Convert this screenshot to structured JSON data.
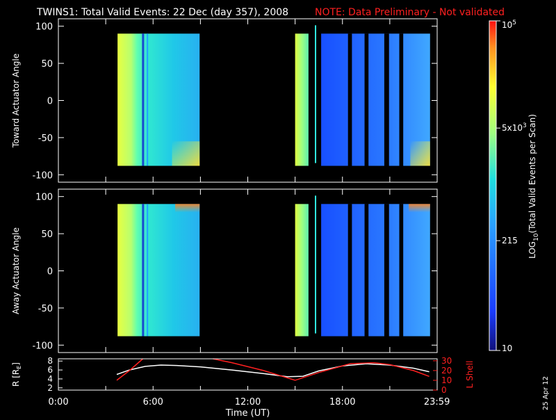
{
  "title": {
    "main": "TWINS1: Total Valid Events: 22 Dec (day 357), 2008",
    "note": "NOTE: Data Preliminary - Not validated"
  },
  "date_stamp": "25 Apr 12",
  "colors": {
    "background": "#000000",
    "axes": "#ffffff",
    "note": "#ff2020",
    "l_shell": "#ff2020",
    "radius": "#ffffff"
  },
  "chart_data": [
    {
      "type": "heatmap",
      "panel": "top",
      "ylabel": "Toward Actuator Angle",
      "yticks": [
        100,
        50,
        0,
        -50,
        -100
      ],
      "ylim": [
        -110,
        110
      ],
      "xlim_hours": [
        0,
        24
      ],
      "coverage": [
        {
          "start": 3.75,
          "end": 8.95,
          "angle_range": [
            -88,
            90
          ]
        },
        {
          "start": 15.0,
          "end": 23.55,
          "angle_range": [
            -88,
            90
          ]
        }
      ]
    },
    {
      "type": "heatmap",
      "panel": "bottom",
      "ylabel": "Away Actuator Angle",
      "yticks": [
        100,
        50,
        0,
        -50,
        -100
      ],
      "ylim": [
        -110,
        110
      ],
      "xlim_hours": [
        0,
        24
      ],
      "coverage": [
        {
          "start": 3.75,
          "end": 8.95,
          "angle_range": [
            -88,
            90
          ]
        },
        {
          "start": 15.0,
          "end": 23.55,
          "angle_range": [
            -88,
            90
          ]
        }
      ]
    },
    {
      "type": "line",
      "panel": "orbit",
      "ylabel_left": "R [R",
      "ylabel_left_sub": "E",
      "ylabel_left_end": "]",
      "ylabel_right": "L Shell",
      "yticks_left": [
        8,
        6,
        4,
        2
      ],
      "ylim_left": [
        1.5,
        8.5
      ],
      "yticks_right": [
        30,
        20,
        10,
        0
      ],
      "ylim_right": [
        0,
        32
      ],
      "series": [
        {
          "axis": "left",
          "x": [
            3.7,
            4.5,
            5.5,
            6.5,
            7.5,
            9.0,
            11.0,
            13.0,
            14.5,
            15.5,
            16.5,
            18.0,
            19.5,
            21.0,
            22.5,
            23.5
          ],
          "y": [
            5.0,
            6.0,
            6.8,
            7.1,
            7.0,
            6.7,
            6.0,
            5.2,
            4.5,
            4.6,
            5.8,
            6.9,
            7.4,
            7.1,
            6.4,
            5.6
          ]
        },
        {
          "axis": "right",
          "x": [
            3.7,
            4.5,
            5.0,
            5.35,
            null,
            9.8,
            11.0,
            13.0,
            15.0,
            16.5,
            18.5,
            20.0,
            21.0,
            22.5,
            23.5
          ],
          "y": [
            10,
            20,
            27,
            32,
            null,
            32,
            28,
            20,
            10,
            18,
            27,
            28,
            26,
            20,
            14
          ]
        }
      ],
      "xticks": [
        "0:00",
        "6:00",
        "12:00",
        "18:00",
        "23:59"
      ],
      "xtick_hours": [
        0,
        6,
        12,
        18,
        23.983
      ],
      "xlabel": "Time (UT)"
    }
  ],
  "colorbar": {
    "label_pre": "LOG",
    "label_sub": "10",
    "label_post": "(Total Valid  Events per Scan)",
    "scale": "log",
    "range": [
      10,
      100000
    ],
    "ticks": [
      {
        "value": 100000,
        "base": "10",
        "exp": "5"
      },
      {
        "value": 5000,
        "base": "5x10",
        "exp": "3"
      },
      {
        "value": 215,
        "base": "215",
        "exp": ""
      },
      {
        "value": 10,
        "base": "10",
        "exp": ""
      }
    ]
  }
}
